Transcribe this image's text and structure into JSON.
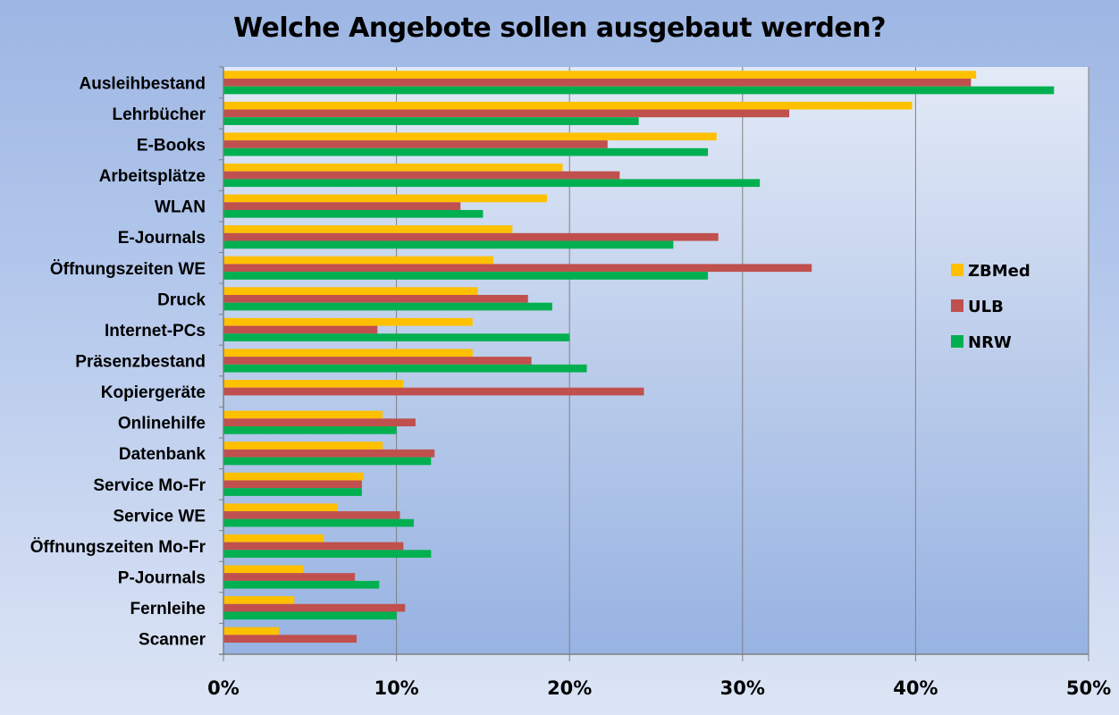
{
  "chart_data": {
    "type": "bar",
    "orientation": "horizontal",
    "title": "Welche Angebote sollen ausgebaut werden?",
    "xlabel": "",
    "ylabel": "",
    "xlim": [
      0,
      50
    ],
    "x_ticks": [
      "0%",
      "10%",
      "20%",
      "30%",
      "40%",
      "50%"
    ],
    "x_tick_values": [
      0,
      10,
      20,
      30,
      40,
      50
    ],
    "grid": true,
    "legend_position": "right",
    "categories": [
      "Ausleihbestand",
      "Lehrbücher",
      "E-Books",
      "Arbeitsplätze",
      "WLAN",
      "E-Journals",
      "Öffnungszeiten WE",
      "Druck",
      "Internet-PCs",
      "Präsenzbestand",
      "Kopiergeräte",
      "Onlinehilfe",
      "Datenbank",
      "Service Mo-Fr",
      "Service WE",
      "Öffnungszeiten Mo-Fr",
      "P-Journals",
      "Fernleihe",
      "Scanner"
    ],
    "series": [
      {
        "name": "ZBMed",
        "color": "#ffc000",
        "values": [
          43.5,
          39.8,
          28.5,
          19.6,
          18.7,
          16.7,
          15.6,
          14.7,
          14.4,
          14.4,
          10.4,
          9.2,
          9.2,
          8.1,
          6.6,
          5.8,
          4.6,
          4.1,
          3.2
        ]
      },
      {
        "name": "ULB",
        "color": "#c0504d",
        "values": [
          43.2,
          32.7,
          22.2,
          22.9,
          13.7,
          28.6,
          34.0,
          17.6,
          8.9,
          17.8,
          24.3,
          11.1,
          12.2,
          8.0,
          10.2,
          10.4,
          7.6,
          10.5,
          7.7
        ]
      },
      {
        "name": "NRW",
        "color": "#00b050",
        "values": [
          48.0,
          24.0,
          28.0,
          31.0,
          15.0,
          26.0,
          28.0,
          19.0,
          20.0,
          21.0,
          0,
          10.0,
          12.0,
          8.0,
          11.0,
          12.0,
          9.0,
          10.0,
          0
        ]
      }
    ]
  }
}
